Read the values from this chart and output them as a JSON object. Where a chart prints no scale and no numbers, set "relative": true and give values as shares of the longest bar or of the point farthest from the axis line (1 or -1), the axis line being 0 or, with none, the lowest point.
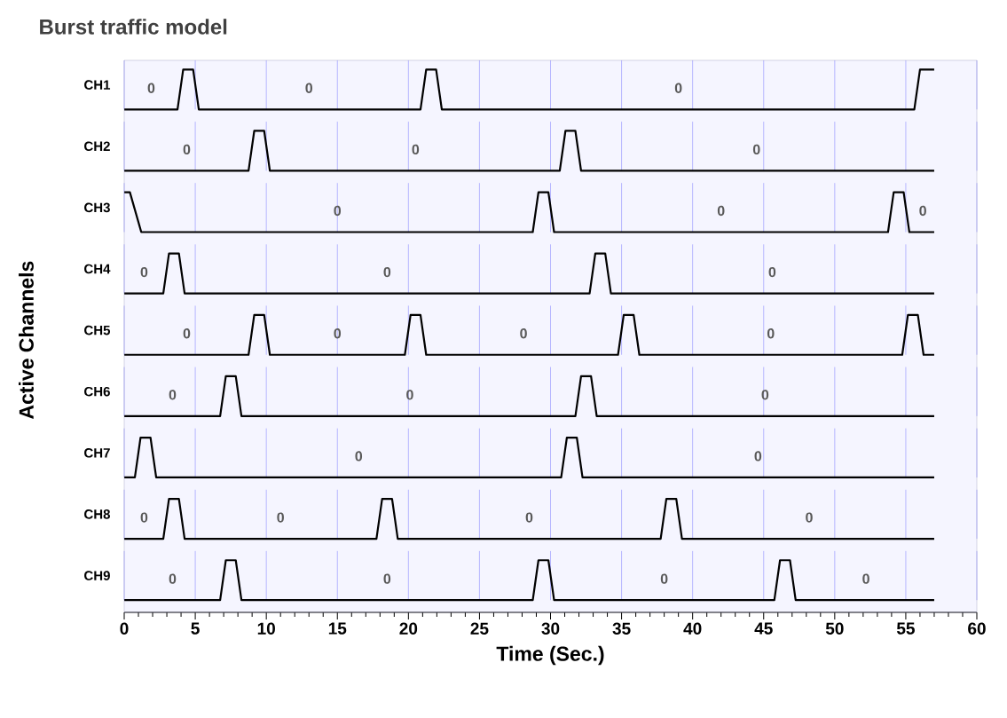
{
  "chart_data": [
    {
      "type": "line",
      "title": "Burst traffic model",
      "ylabel": "CH1",
      "relative": true,
      "grid": "x",
      "tick_labels": false,
      "xlim": [
        0,
        60
      ],
      "xticks": [
        0,
        5,
        10,
        15,
        20,
        25,
        30,
        35,
        40,
        45,
        50,
        55,
        60
      ],
      "series": [
        {
          "color": "#000000",
          "x": [
            0,
            3.75,
            4.15,
            4.85,
            5.25,
            20.85,
            21.25,
            21.95,
            22.35,
            55.6,
            56,
            57
          ],
          "values": [
            0,
            0,
            1,
            1,
            0,
            0,
            1,
            1,
            0,
            0,
            1,
            1
          ]
        }
      ],
      "annotations": [
        {
          "text": "0",
          "x": 1.9,
          "y": 0
        },
        {
          "text": "0",
          "x": 13,
          "y": 0
        },
        {
          "text": "0",
          "x": 39,
          "y": 0
        }
      ]
    },
    {
      "type": "line",
      "ylabel": "CH2",
      "relative": true,
      "grid": "x",
      "tick_labels": false,
      "xlim": [
        0,
        60
      ],
      "xticks": [
        0,
        5,
        10,
        15,
        20,
        25,
        30,
        35,
        40,
        45,
        50,
        55,
        60
      ],
      "series": [
        {
          "color": "#000000",
          "x": [
            0,
            8.75,
            9.15,
            9.85,
            10.25,
            30.65,
            31.05,
            31.75,
            32.15,
            57
          ],
          "values": [
            0,
            0,
            1,
            1,
            0,
            0,
            1,
            1,
            0,
            0
          ]
        }
      ],
      "annotations": [
        {
          "text": "0",
          "x": 4.4,
          "y": 0
        },
        {
          "text": "0",
          "x": 20.5,
          "y": 0
        },
        {
          "text": "0",
          "x": 44.5,
          "y": 0
        }
      ]
    },
    {
      "type": "line",
      "ylabel": "CH3",
      "relative": true,
      "grid": "x",
      "tick_labels": false,
      "xlim": [
        0,
        60
      ],
      "xticks": [
        0,
        5,
        10,
        15,
        20,
        25,
        30,
        35,
        40,
        45,
        50,
        55,
        60
      ],
      "series": [
        {
          "color": "#000000",
          "x": [
            0,
            0.4,
            1.2,
            28.75,
            29.15,
            29.85,
            30.25,
            53.75,
            54.15,
            54.85,
            55.25,
            57
          ],
          "values": [
            1,
            1,
            0,
            0,
            1,
            1,
            0,
            0,
            1,
            1,
            0,
            0
          ]
        }
      ],
      "annotations": [
        {
          "text": "0",
          "x": 15,
          "y": 0
        },
        {
          "text": "0",
          "x": 42,
          "y": 0
        },
        {
          "text": "0",
          "x": 56.2,
          "y": 0
        }
      ]
    },
    {
      "type": "line",
      "ylabel": "CH4",
      "relative": true,
      "grid": "x",
      "tick_labels": false,
      "xlim": [
        0,
        60
      ],
      "xticks": [
        0,
        5,
        10,
        15,
        20,
        25,
        30,
        35,
        40,
        45,
        50,
        55,
        60
      ],
      "series": [
        {
          "color": "#000000",
          "x": [
            0,
            2.75,
            3.15,
            3.85,
            4.25,
            32.75,
            33.15,
            33.85,
            34.25,
            57
          ],
          "values": [
            0,
            0,
            1,
            1,
            0,
            0,
            1,
            1,
            0,
            0
          ]
        }
      ],
      "annotations": [
        {
          "text": "0",
          "x": 1.4,
          "y": 0
        },
        {
          "text": "0",
          "x": 18.5,
          "y": 0
        },
        {
          "text": "0",
          "x": 45.6,
          "y": 0
        }
      ]
    },
    {
      "type": "line",
      "ylabel": "CH5",
      "relative": true,
      "grid": "x",
      "tick_labels": false,
      "xlim": [
        0,
        60
      ],
      "xticks": [
        0,
        5,
        10,
        15,
        20,
        25,
        30,
        35,
        40,
        45,
        50,
        55,
        60
      ],
      "series": [
        {
          "color": "#000000",
          "x": [
            0,
            8.75,
            9.15,
            9.85,
            10.25,
            19.75,
            20.15,
            20.85,
            21.25,
            34.75,
            35.15,
            35.85,
            36.25,
            54.75,
            55.15,
            55.85,
            56.25,
            57
          ],
          "values": [
            0,
            0,
            1,
            1,
            0,
            0,
            1,
            1,
            0,
            0,
            1,
            1,
            0,
            0,
            1,
            1,
            0,
            0
          ]
        }
      ],
      "annotations": [
        "Active Channels",
        {
          "text": "0",
          "x": 4.4,
          "y": 0
        },
        {
          "text": "0",
          "x": 15,
          "y": 0
        },
        {
          "text": "0",
          "x": 28.1,
          "y": 0
        },
        {
          "text": "0",
          "x": 45.5,
          "y": 0
        }
      ]
    },
    {
      "type": "line",
      "ylabel": "CH6",
      "relative": true,
      "grid": "x",
      "tick_labels": false,
      "xlim": [
        0,
        60
      ],
      "xticks": [
        0,
        5,
        10,
        15,
        20,
        25,
        30,
        35,
        40,
        45,
        50,
        55,
        60
      ],
      "series": [
        {
          "color": "#000000",
          "x": [
            0,
            6.75,
            7.15,
            7.85,
            8.25,
            31.75,
            32.15,
            32.85,
            33.25,
            57
          ],
          "values": [
            0,
            0,
            1,
            1,
            0,
            0,
            1,
            1,
            0,
            0
          ]
        }
      ],
      "annotations": [
        {
          "text": "0",
          "x": 3.4,
          "y": 0
        },
        {
          "text": "0",
          "x": 20.1,
          "y": 0
        },
        {
          "text": "0",
          "x": 45.1,
          "y": 0
        }
      ]
    },
    {
      "type": "line",
      "ylabel": "CH7",
      "relative": true,
      "grid": "x",
      "tick_labels": false,
      "xlim": [
        0,
        60
      ],
      "xticks": [
        0,
        5,
        10,
        15,
        20,
        25,
        30,
        35,
        40,
        45,
        50,
        55,
        60
      ],
      "series": [
        {
          "color": "#000000",
          "x": [
            0,
            0.75,
            1.15,
            1.85,
            2.25,
            30.75,
            31.15,
            31.85,
            32.25,
            57
          ],
          "values": [
            0,
            0,
            1,
            1,
            0,
            0,
            1,
            1,
            0,
            0
          ]
        }
      ],
      "annotations": [
        {
          "text": "0",
          "x": 16.5,
          "y": 0
        },
        {
          "text": "0",
          "x": 44.6,
          "y": 0
        }
      ]
    },
    {
      "type": "line",
      "ylabel": "CH8",
      "relative": true,
      "grid": "x",
      "tick_labels": false,
      "xlim": [
        0,
        60
      ],
      "xticks": [
        0,
        5,
        10,
        15,
        20,
        25,
        30,
        35,
        40,
        45,
        50,
        55,
        60
      ],
      "series": [
        {
          "color": "#000000",
          "x": [
            0,
            2.75,
            3.15,
            3.85,
            4.25,
            17.75,
            18.15,
            18.85,
            19.25,
            37.75,
            38.15,
            38.85,
            39.25,
            57
          ],
          "values": [
            0,
            0,
            1,
            1,
            0,
            0,
            1,
            1,
            0,
            0,
            1,
            1,
            0,
            0
          ]
        }
      ],
      "annotations": [
        {
          "text": "0",
          "x": 1.4,
          "y": 0
        },
        {
          "text": "0",
          "x": 11,
          "y": 0
        },
        {
          "text": "0",
          "x": 28.5,
          "y": 0
        },
        {
          "text": "0",
          "x": 48.2,
          "y": 0
        }
      ]
    },
    {
      "type": "line",
      "ylabel": "CH9",
      "xlabel": "Time (Sec.)",
      "relative": true,
      "grid": "x",
      "tick_labels": "x",
      "xlim": [
        0,
        60
      ],
      "xticks": [
        0,
        5,
        10,
        15,
        20,
        25,
        30,
        35,
        40,
        45,
        50,
        55,
        60
      ],
      "series": [
        {
          "color": "#000000",
          "x": [
            0,
            6.75,
            7.15,
            7.85,
            8.25,
            28.75,
            29.15,
            29.85,
            30.25,
            45.75,
            46.15,
            46.85,
            47.25,
            57
          ],
          "values": [
            0,
            0,
            1,
            1,
            0,
            0,
            1,
            1,
            0,
            0,
            1,
            1,
            0,
            0
          ]
        }
      ],
      "annotations": [
        {
          "text": "0",
          "x": 3.4,
          "y": 0
        },
        {
          "text": "0",
          "x": 18.5,
          "y": 0
        },
        {
          "text": "0",
          "x": 38,
          "y": 0
        },
        {
          "text": "0",
          "x": 52.2,
          "y": 0
        }
      ]
    }
  ]
}
